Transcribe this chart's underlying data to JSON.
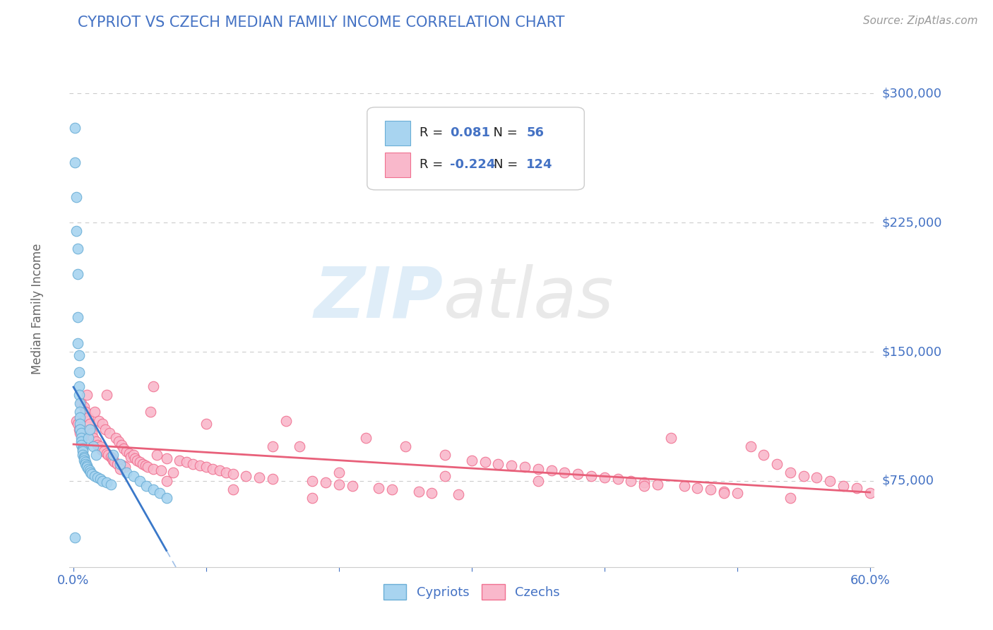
{
  "title": "CYPRIOT VS CZECH MEDIAN FAMILY INCOME CORRELATION CHART",
  "source_text": "Source: ZipAtlas.com",
  "ylabel": "Median Family Income",
  "xlim": [
    -0.003,
    0.603
  ],
  "ylim": [
    25000,
    325000
  ],
  "ytick_vals": [
    75000,
    150000,
    225000,
    300000
  ],
  "ytick_labels": [
    "$75,000",
    "$150,000",
    "$225,000",
    "$300,000"
  ],
  "xtick_vals": [
    0.0,
    0.6
  ],
  "xtick_labels": [
    "0.0%",
    "60.0%"
  ],
  "cypriot_color": "#a8d4f0",
  "czech_color": "#f9b8cb",
  "cypriot_edge": "#6aaed6",
  "czech_edge": "#f07090",
  "trend_cypriot_color": "#3a78c9",
  "trend_czech_color": "#e8607a",
  "axis_label_color": "#4472c4",
  "title_color": "#4472c4",
  "grid_color": "#cccccc",
  "legend_R_cypriot": "0.081",
  "legend_N_cypriot": "56",
  "legend_R_czech": "-0.224",
  "legend_N_czech": "124",
  "cypriot_x": [
    0.001,
    0.001,
    0.002,
    0.002,
    0.003,
    0.003,
    0.003,
    0.003,
    0.004,
    0.004,
    0.004,
    0.004,
    0.005,
    0.005,
    0.005,
    0.005,
    0.005,
    0.006,
    0.006,
    0.006,
    0.006,
    0.007,
    0.007,
    0.007,
    0.007,
    0.008,
    0.008,
    0.008,
    0.009,
    0.009,
    0.01,
    0.01,
    0.011,
    0.011,
    0.012,
    0.012,
    0.013,
    0.014,
    0.015,
    0.016,
    0.017,
    0.018,
    0.02,
    0.022,
    0.025,
    0.028,
    0.03,
    0.035,
    0.04,
    0.045,
    0.05,
    0.055,
    0.06,
    0.065,
    0.07,
    0.001
  ],
  "cypriot_y": [
    280000,
    260000,
    240000,
    220000,
    210000,
    195000,
    170000,
    155000,
    148000,
    138000,
    130000,
    125000,
    120000,
    115000,
    112000,
    108000,
    105000,
    103000,
    100000,
    98000,
    96000,
    94000,
    93000,
    92000,
    90000,
    89000,
    88000,
    87000,
    86000,
    85000,
    84000,
    83000,
    100000,
    82000,
    81000,
    105000,
    80000,
    79000,
    95000,
    78000,
    90000,
    77000,
    76000,
    75000,
    74000,
    73000,
    90000,
    85000,
    80000,
    78000,
    75000,
    72000,
    70000,
    68000,
    65000,
    42000
  ],
  "czech_x": [
    0.002,
    0.003,
    0.004,
    0.005,
    0.006,
    0.007,
    0.008,
    0.009,
    0.01,
    0.011,
    0.012,
    0.013,
    0.014,
    0.015,
    0.016,
    0.017,
    0.018,
    0.019,
    0.02,
    0.021,
    0.022,
    0.023,
    0.024,
    0.025,
    0.026,
    0.027,
    0.028,
    0.029,
    0.03,
    0.031,
    0.032,
    0.033,
    0.034,
    0.036,
    0.037,
    0.038,
    0.039,
    0.04,
    0.042,
    0.043,
    0.045,
    0.046,
    0.048,
    0.05,
    0.052,
    0.054,
    0.056,
    0.058,
    0.06,
    0.063,
    0.066,
    0.07,
    0.075,
    0.08,
    0.085,
    0.09,
    0.095,
    0.1,
    0.105,
    0.11,
    0.115,
    0.12,
    0.13,
    0.14,
    0.15,
    0.16,
    0.17,
    0.18,
    0.19,
    0.2,
    0.21,
    0.22,
    0.23,
    0.24,
    0.25,
    0.26,
    0.27,
    0.28,
    0.29,
    0.3,
    0.31,
    0.32,
    0.33,
    0.34,
    0.35,
    0.36,
    0.37,
    0.38,
    0.39,
    0.4,
    0.41,
    0.42,
    0.43,
    0.44,
    0.45,
    0.46,
    0.47,
    0.48,
    0.49,
    0.5,
    0.51,
    0.52,
    0.53,
    0.54,
    0.55,
    0.56,
    0.57,
    0.58,
    0.59,
    0.6,
    0.025,
    0.06,
    0.1,
    0.15,
    0.2,
    0.28,
    0.35,
    0.43,
    0.49,
    0.54,
    0.035,
    0.07,
    0.12,
    0.18
  ],
  "czech_y": [
    110000,
    108000,
    105000,
    103000,
    120000,
    100000,
    118000,
    115000,
    125000,
    112000,
    108000,
    105000,
    103000,
    100000,
    115000,
    98000,
    96000,
    110000,
    95000,
    93000,
    108000,
    92000,
    105000,
    91000,
    90000,
    103000,
    89000,
    88000,
    87000,
    86000,
    100000,
    85000,
    98000,
    96000,
    84000,
    94000,
    83000,
    92000,
    91000,
    89000,
    90000,
    88000,
    87000,
    86000,
    85000,
    84000,
    83000,
    115000,
    82000,
    90000,
    81000,
    88000,
    80000,
    87000,
    86000,
    85000,
    84000,
    83000,
    82000,
    81000,
    80000,
    79000,
    78000,
    77000,
    76000,
    110000,
    95000,
    75000,
    74000,
    73000,
    72000,
    100000,
    71000,
    70000,
    95000,
    69000,
    68000,
    90000,
    67000,
    87000,
    86000,
    85000,
    84000,
    83000,
    82000,
    81000,
    80000,
    79000,
    78000,
    77000,
    76000,
    75000,
    74000,
    73000,
    100000,
    72000,
    71000,
    70000,
    69000,
    68000,
    95000,
    90000,
    85000,
    80000,
    78000,
    77000,
    75000,
    72000,
    71000,
    68000,
    125000,
    130000,
    108000,
    95000,
    80000,
    78000,
    75000,
    72000,
    68000,
    65000,
    82000,
    75000,
    70000,
    65000
  ]
}
